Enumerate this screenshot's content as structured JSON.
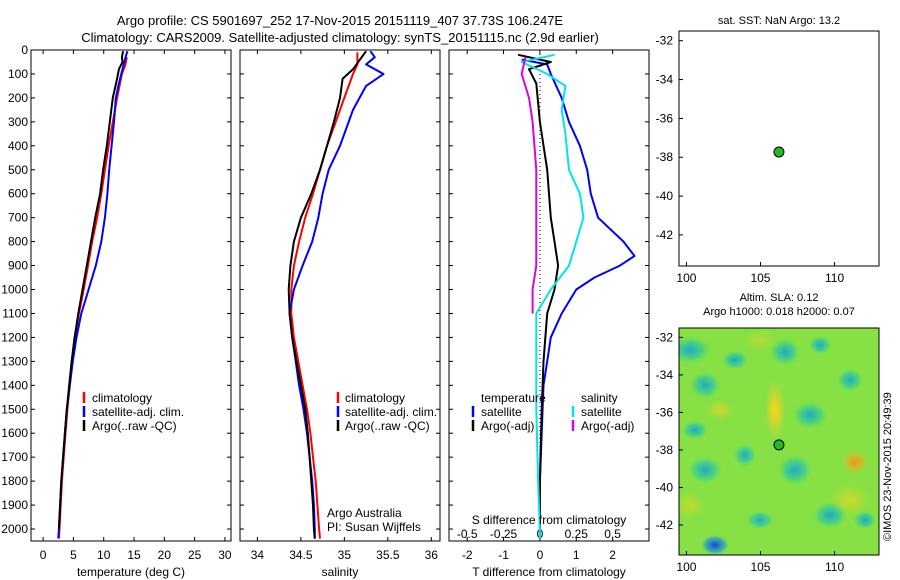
{
  "title_line1": "Argo profile: CS 5901697_252 17-Nov-2015 20151119_407 37.73S 106.247E",
  "title_line2": "Climatology: CARS2009. Satellite-adjusted climatology: synTS_20151115.nc (2.9d earlier)",
  "credit": "©IMOS 23-Nov-2015 20:49:39",
  "colors": {
    "climatology": "#ff0000",
    "satellite": "#0000ff",
    "argo": "#000000",
    "salinity_satellite": "#00e5e5",
    "salinity_argo": "#e000e0",
    "marker": "#22bb22"
  },
  "chart_data": [
    {
      "type": "line",
      "xlabel": "temperature (deg C)",
      "xticks": [
        "0",
        "5",
        "10",
        "15",
        "20",
        "25",
        "30"
      ],
      "xlim": [
        -2,
        31
      ],
      "yticks": [
        "0",
        "100",
        "200",
        "300",
        "400",
        "500",
        "600",
        "700",
        "800",
        "900",
        "1000",
        "1100",
        "1200",
        "1300",
        "1400",
        "1500",
        "1600",
        "1700",
        "1800",
        "1900",
        "2000"
      ],
      "ylim": [
        2050,
        0
      ],
      "legend": [
        "climatology",
        "satellite-adj. clim.",
        "Argo(..raw -QC)"
      ],
      "series": [
        {
          "name": "climatology",
          "color": "#ff0000",
          "points": [
            [
              13.8,
              30
            ],
            [
              13.6,
              60
            ],
            [
              13,
              100
            ],
            [
              12.2,
              200
            ],
            [
              11.5,
              300
            ],
            [
              10.8,
              400
            ],
            [
              10.2,
              500
            ],
            [
              9.6,
              600
            ],
            [
              8.9,
              700
            ],
            [
              8.1,
              800
            ],
            [
              7.4,
              900
            ],
            [
              6.7,
              1000
            ],
            [
              5.9,
              1100
            ],
            [
              5.3,
              1200
            ],
            [
              4.8,
              1300
            ],
            [
              4.4,
              1400
            ],
            [
              4.0,
              1500
            ],
            [
              3.7,
              1600
            ],
            [
              3.4,
              1700
            ],
            [
              3.1,
              1800
            ],
            [
              2.9,
              1900
            ],
            [
              2.7,
              2000
            ],
            [
              2.6,
              2040
            ]
          ]
        },
        {
          "name": "satellite-adj. clim.",
          "color": "#0000ff",
          "points": [
            [
              13.9,
              5
            ],
            [
              13.6,
              30
            ],
            [
              13.3,
              60
            ],
            [
              12.9,
              100
            ],
            [
              12.4,
              150
            ],
            [
              12.0,
              200
            ],
            [
              11.7,
              300
            ],
            [
              11.3,
              400
            ],
            [
              10.9,
              500
            ],
            [
              10.6,
              600
            ],
            [
              10.2,
              700
            ],
            [
              9.6,
              800
            ],
            [
              8.7,
              900
            ],
            [
              7.5,
              1000
            ],
            [
              6.3,
              1100
            ],
            [
              5.5,
              1200
            ],
            [
              4.9,
              1300
            ],
            [
              4.4,
              1400
            ],
            [
              3.9,
              1500
            ],
            [
              3.6,
              1600
            ],
            [
              3.3,
              1700
            ],
            [
              3.0,
              1800
            ],
            [
              2.8,
              1900
            ],
            [
              2.6,
              2000
            ],
            [
              2.5,
              2040
            ]
          ]
        },
        {
          "name": "Argo(..raw -QC)",
          "color": "#000000",
          "points": [
            [
              13.2,
              5
            ],
            [
              13.0,
              30
            ],
            [
              13.1,
              50
            ],
            [
              12.5,
              80
            ],
            [
              12.2,
              120
            ],
            [
              11.5,
              200
            ],
            [
              11.0,
              300
            ],
            [
              10.5,
              400
            ],
            [
              9.9,
              500
            ],
            [
              9.4,
              600
            ],
            [
              8.6,
              700
            ],
            [
              7.9,
              800
            ],
            [
              7.2,
              900
            ],
            [
              6.5,
              1000
            ],
            [
              5.8,
              1100
            ],
            [
              5.2,
              1200
            ],
            [
              4.7,
              1300
            ],
            [
              4.3,
              1400
            ],
            [
              3.9,
              1500
            ],
            [
              3.6,
              1600
            ],
            [
              3.3,
              1700
            ],
            [
              3.0,
              1800
            ],
            [
              2.8,
              1900
            ],
            [
              2.6,
              2000
            ]
          ]
        }
      ]
    },
    {
      "type": "line",
      "xlabel": "salinity",
      "xticks": [
        "34",
        "34.5",
        "35",
        "35.5",
        "36"
      ],
      "xlim": [
        33.8,
        36.1
      ],
      "ylim": [
        2050,
        0
      ],
      "legend": [
        "climatology",
        "satellite-adj. clim.",
        "Argo(..raw -QC)"
      ],
      "annotation": [
        "Argo Australia",
        "PI: Susan Wijffels"
      ],
      "series": [
        {
          "name": "climatology",
          "color": "#ff0000",
          "points": [
            [
              35.15,
              10
            ],
            [
              35.15,
              60
            ],
            [
              35.1,
              100
            ],
            [
              35.0,
              200
            ],
            [
              34.9,
              300
            ],
            [
              34.8,
              400
            ],
            [
              34.72,
              500
            ],
            [
              34.64,
              600
            ],
            [
              34.55,
              700
            ],
            [
              34.48,
              800
            ],
            [
              34.42,
              900
            ],
            [
              34.39,
              1000
            ],
            [
              34.39,
              1100
            ],
            [
              34.42,
              1200
            ],
            [
              34.47,
              1300
            ],
            [
              34.52,
              1400
            ],
            [
              34.57,
              1500
            ],
            [
              34.61,
              1600
            ],
            [
              34.64,
              1700
            ],
            [
              34.67,
              1800
            ],
            [
              34.69,
              1900
            ],
            [
              34.71,
              2000
            ],
            [
              34.72,
              2040
            ]
          ]
        },
        {
          "name": "satellite-adj. clim.",
          "color": "#0000ff",
          "points": [
            [
              35.3,
              5
            ],
            [
              35.35,
              30
            ],
            [
              35.25,
              60
            ],
            [
              35.45,
              100
            ],
            [
              35.25,
              150
            ],
            [
              35.1,
              250
            ],
            [
              34.95,
              400
            ],
            [
              34.82,
              500
            ],
            [
              34.75,
              600
            ],
            [
              34.7,
              700
            ],
            [
              34.63,
              800
            ],
            [
              34.52,
              900
            ],
            [
              34.42,
              1000
            ],
            [
              34.37,
              1100
            ],
            [
              34.4,
              1200
            ],
            [
              34.44,
              1300
            ],
            [
              34.48,
              1400
            ],
            [
              34.53,
              1500
            ],
            [
              34.57,
              1600
            ],
            [
              34.6,
              1700
            ],
            [
              34.63,
              1800
            ],
            [
              34.65,
              1900
            ],
            [
              34.66,
              2000
            ],
            [
              34.66,
              2040
            ]
          ]
        },
        {
          "name": "Argo(..raw -QC)",
          "color": "#000000",
          "points": [
            [
              35.25,
              5
            ],
            [
              35.2,
              30
            ],
            [
              35.1,
              80
            ],
            [
              34.98,
              120
            ],
            [
              34.95,
              200
            ],
            [
              34.88,
              300
            ],
            [
              34.8,
              400
            ],
            [
              34.72,
              500
            ],
            [
              34.62,
              600
            ],
            [
              34.5,
              700
            ],
            [
              34.42,
              800
            ],
            [
              34.38,
              900
            ],
            [
              34.36,
              1000
            ],
            [
              34.37,
              1100
            ],
            [
              34.4,
              1200
            ],
            [
              34.45,
              1300
            ],
            [
              34.5,
              1400
            ],
            [
              34.55,
              1500
            ],
            [
              34.58,
              1600
            ],
            [
              34.6,
              1700
            ],
            [
              34.62,
              1800
            ],
            [
              34.64,
              1900
            ],
            [
              34.65,
              2000
            ],
            [
              34.66,
              2040
            ]
          ]
        }
      ]
    },
    {
      "type": "line",
      "xlabel": "T difference from climatology",
      "xticks": [
        "-2",
        "-1",
        "0",
        "1",
        "2"
      ],
      "xlim": [
        -2.5,
        3
      ],
      "secondary_xlabel": "S difference from climatology",
      "secondary_xticks": [
        "-0.5",
        "-0.25",
        "0",
        "0.25",
        "0.5"
      ],
      "ylim": [
        2050,
        0
      ],
      "legend_headings": [
        "temperature",
        "salinity"
      ],
      "legend": [
        "satellite",
        "Argo(-adj)",
        "satellite",
        "Argo(-adj)"
      ],
      "series": [
        {
          "name": "satellite",
          "color": "#0000ff",
          "points": [
            [
              -0.5,
              40
            ],
            [
              0.2,
              60
            ],
            [
              0.3,
              100
            ],
            [
              0.6,
              200
            ],
            [
              0.8,
              300
            ],
            [
              1.1,
              400
            ],
            [
              1.3,
              500
            ],
            [
              1.4,
              600
            ],
            [
              1.6,
              700
            ],
            [
              2.3,
              800
            ],
            [
              2.6,
              860
            ],
            [
              2.2,
              900
            ],
            [
              1.5,
              950
            ],
            [
              1.0,
              1000
            ],
            [
              0.6,
              1100
            ],
            [
              0.3,
              1200
            ],
            [
              0.2,
              1300
            ],
            [
              0.1,
              1400
            ],
            [
              0.05,
              1600
            ],
            [
              0,
              1800
            ],
            [
              0,
              2000
            ],
            [
              0,
              2040
            ]
          ]
        },
        {
          "name": "Argo(-adj)",
          "color": "#000000",
          "points": [
            [
              -0.6,
              20
            ],
            [
              0.3,
              50
            ],
            [
              -0.3,
              80
            ],
            [
              -0.1,
              140
            ],
            [
              0,
              300
            ],
            [
              0.2,
              500
            ],
            [
              0.3,
              700
            ],
            [
              0.4,
              800
            ],
            [
              0.5,
              900
            ],
            [
              0.4,
              1000
            ],
            [
              0.2,
              1100
            ],
            [
              0.1,
              1300
            ],
            [
              0.05,
              1500
            ],
            [
              0,
              1800
            ],
            [
              0,
              2000
            ]
          ]
        },
        {
          "name": "satellite",
          "color": "#00e5e5",
          "points": [
            [
              0.4,
              20
            ],
            [
              -0.5,
              50
            ],
            [
              0.2,
              100
            ],
            [
              0.7,
              150
            ],
            [
              0.6,
              250
            ],
            [
              0.7,
              350
            ],
            [
              0.8,
              500
            ],
            [
              1.1,
              600
            ],
            [
              1.2,
              700
            ],
            [
              1.0,
              800
            ],
            [
              0.8,
              900
            ],
            [
              0.3,
              1000
            ],
            [
              -0.1,
              1100
            ],
            [
              -0.1,
              1300
            ],
            [
              -0.1,
              1500
            ],
            [
              -0.05,
              1800
            ],
            [
              0,
              2000
            ],
            [
              0,
              2040
            ]
          ]
        },
        {
          "name": "Argo(-adj)",
          "color": "#e000e0",
          "points": [
            [
              -0.4,
              30
            ],
            [
              -0.5,
              100
            ],
            [
              -0.3,
              200
            ],
            [
              -0.2,
              300
            ],
            [
              -0.1,
              500
            ],
            [
              -0.1,
              700
            ],
            [
              -0.1,
              900
            ],
            [
              -0.2,
              1000
            ],
            [
              -0.2,
              1100
            ]
          ]
        }
      ]
    },
    {
      "type": "scatter",
      "title": "sat. SST: NaN Argo: 13.2",
      "xticks": [
        "100",
        "105",
        "110"
      ],
      "yticks": [
        "-32",
        "-34",
        "-36",
        "-38",
        "-40",
        "-42"
      ],
      "xlim": [
        99.5,
        113
      ],
      "ylim": [
        -31.5,
        -43.6
      ],
      "points": [
        [
          106.247,
          -37.73
        ]
      ]
    },
    {
      "type": "heatmap",
      "title_line1": "Altim. SLA: 0.12",
      "title_line2": "Argo h1000: 0.018 h2000: 0.07",
      "xticks": [
        "100",
        "105",
        "110"
      ],
      "yticks": [
        "-32",
        "-34",
        "-36",
        "-38",
        "-40",
        "-42"
      ],
      "xlim": [
        99.5,
        113
      ],
      "ylim": [
        -31.5,
        -43.6
      ],
      "points": [
        [
          106.247,
          -37.73
        ]
      ]
    }
  ]
}
